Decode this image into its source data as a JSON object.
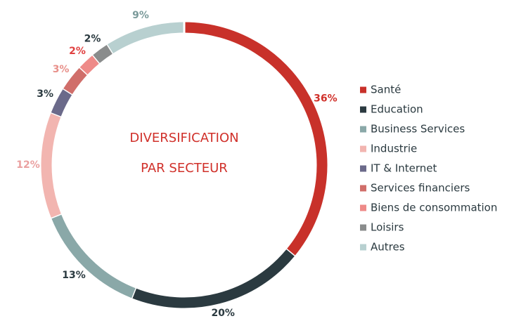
{
  "chart_data": {
    "type": "donut",
    "title": [
      "DIVERSIFICATION",
      "PAR SECTEUR"
    ],
    "categories": [
      "Santé",
      "Education",
      "Business Services",
      "Industrie",
      "IT & Internet",
      "Services financiers",
      "Biens de consommation",
      "Loisirs",
      "Autres"
    ],
    "values": [
      36,
      20,
      13,
      12,
      3,
      3,
      2,
      2,
      9
    ],
    "value_labels": [
      "36%",
      "20%",
      "13%",
      "12%",
      "3%",
      "3%",
      "2%",
      "2%",
      "9%"
    ],
    "colors": [
      "#c8312a",
      "#2b3a40",
      "#8aa8a8",
      "#f2b5b0",
      "#6b6a8a",
      "#d06e6a",
      "#ee8a88",
      "#8a8c8c",
      "#b8d0d0"
    ],
    "label_colors": [
      "#d0302a",
      "#2b3a40",
      "#2b3a40",
      "#eaa0a0",
      "#2b3a40",
      "#e8908a",
      "#e04040",
      "#2b3a40",
      "#7a9a9a"
    ],
    "legend": "right"
  }
}
